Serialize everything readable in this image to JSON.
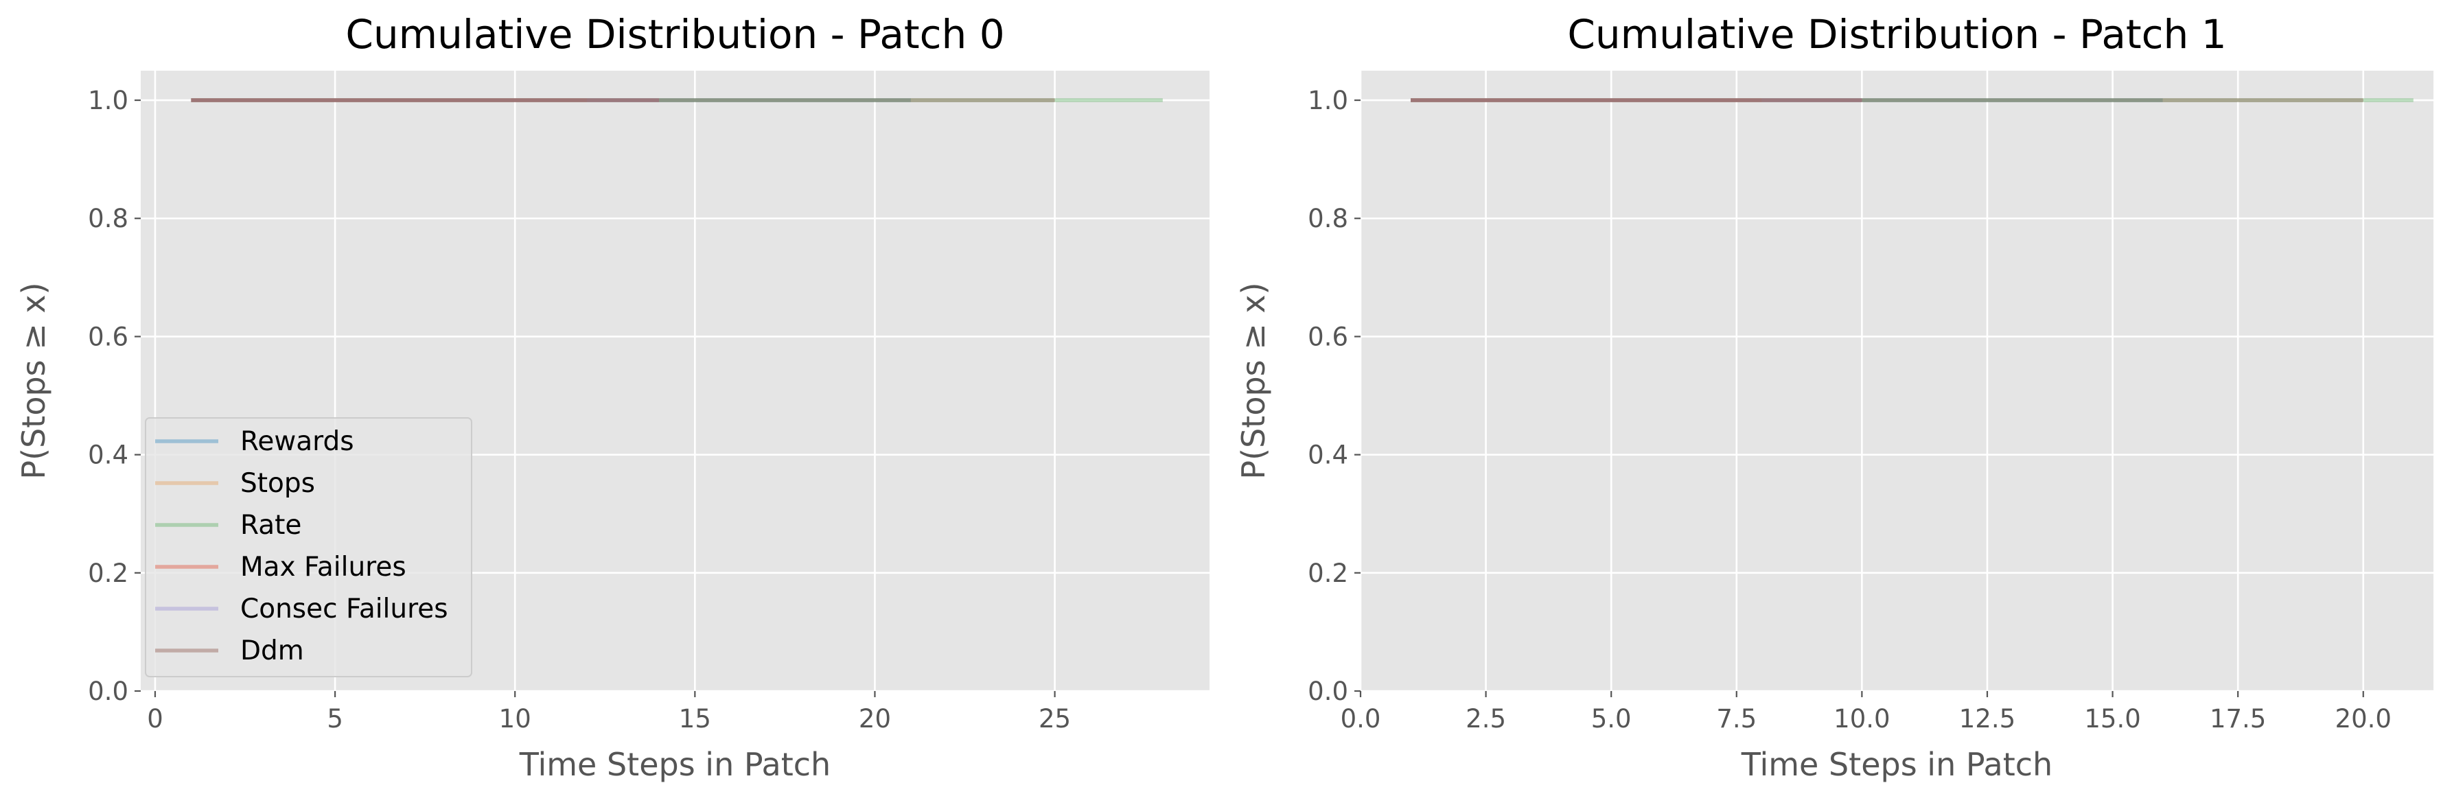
{
  "colors": {
    "axes_face": "#e5e5e5",
    "grid": "#ffffff",
    "tick_text": "#555555",
    "title_text": "#000000",
    "label_text": "#555555",
    "legend_face": "#e5e5e5",
    "legend_edge": "#cccccc"
  },
  "chart_data": [
    {
      "type": "line",
      "title": "Cumulative Distribution - Patch 0",
      "xlabel": "Time Steps in Patch",
      "ylabel": "P(Stops ≥ x)",
      "xlim": [
        -0.4,
        29.3
      ],
      "ylim": [
        0.0,
        1.05
      ],
      "xticks": [
        0,
        5,
        10,
        15,
        20,
        25
      ],
      "xtick_labels": [
        "0",
        "5",
        "10",
        "15",
        "20",
        "25"
      ],
      "yticks": [
        0.0,
        0.2,
        0.4,
        0.6,
        0.8,
        1.0
      ],
      "ytick_labels": [
        "0.0",
        "0.2",
        "0.4",
        "0.6",
        "0.8",
        "1.0"
      ],
      "grid": true,
      "legend_position": "lower-left",
      "series": [
        {
          "name": "Rewards",
          "color": "#348ABD",
          "x": [
            1,
            21
          ],
          "y": [
            1.0,
            1.0
          ]
        },
        {
          "name": "Stops",
          "color": "#E59E58",
          "x": [
            1,
            12
          ],
          "y": [
            1.0,
            1.0
          ]
        },
        {
          "name": "Rate",
          "color": "#5AAE61",
          "x": [
            1,
            28
          ],
          "y": [
            1.0,
            1.0
          ]
        },
        {
          "name": "Max Failures",
          "color": "#E24A33",
          "x": [
            1,
            14
          ],
          "y": [
            1.0,
            1.0
          ]
        },
        {
          "name": "Consec Failures",
          "color": "#988ED5",
          "x": [
            1,
            14
          ],
          "y": [
            1.0,
            1.0
          ]
        },
        {
          "name": "Ddm",
          "color": "#8C564B",
          "x": [
            1,
            25
          ],
          "y": [
            1.0,
            1.0
          ]
        }
      ]
    },
    {
      "type": "line",
      "title": "Cumulative Distribution - Patch 1",
      "xlabel": "Time Steps in Patch",
      "ylabel": "P(Stops ≥ x)",
      "xlim": [
        0.0,
        21.4
      ],
      "ylim": [
        0.0,
        1.05
      ],
      "xticks": [
        0.0,
        2.5,
        5.0,
        7.5,
        10.0,
        12.5,
        15.0,
        17.5,
        20.0
      ],
      "xtick_labels": [
        "0.0",
        "2.5",
        "5.0",
        "7.5",
        "10.0",
        "12.5",
        "15.0",
        "17.5",
        "20.0"
      ],
      "yticks": [
        0.0,
        0.2,
        0.4,
        0.6,
        0.8,
        1.0
      ],
      "ytick_labels": [
        "0.0",
        "0.2",
        "0.4",
        "0.6",
        "0.8",
        "1.0"
      ],
      "grid": true,
      "legend_position": "none",
      "series": [
        {
          "name": "Rewards",
          "color": "#348ABD",
          "x": [
            1,
            16
          ],
          "y": [
            1.0,
            1.0
          ]
        },
        {
          "name": "Stops",
          "color": "#E59E58",
          "x": [
            1,
            8
          ],
          "y": [
            1.0,
            1.0
          ]
        },
        {
          "name": "Rate",
          "color": "#5AAE61",
          "x": [
            1,
            21
          ],
          "y": [
            1.0,
            1.0
          ]
        },
        {
          "name": "Max Failures",
          "color": "#E24A33",
          "x": [
            1,
            10
          ],
          "y": [
            1.0,
            1.0
          ]
        },
        {
          "name": "Consec Failures",
          "color": "#988ED5",
          "x": [
            1,
            10
          ],
          "y": [
            1.0,
            1.0
          ]
        },
        {
          "name": "Ddm",
          "color": "#8C564B",
          "x": [
            1,
            20
          ],
          "y": [
            1.0,
            1.0
          ]
        }
      ]
    }
  ]
}
